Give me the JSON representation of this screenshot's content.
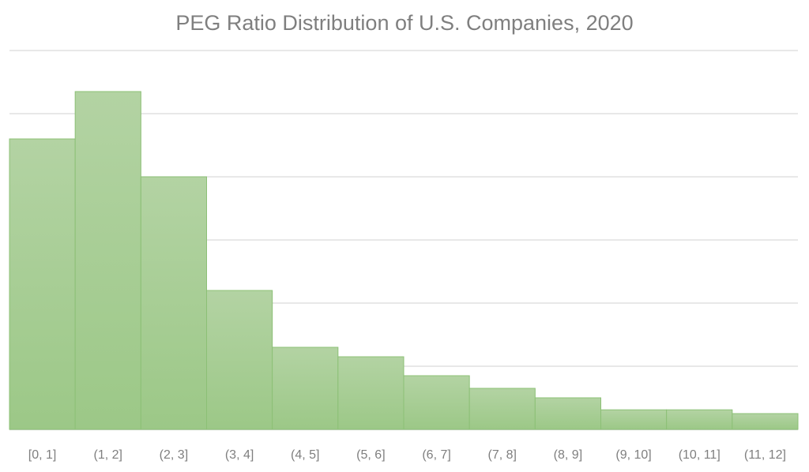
{
  "chart_data": {
    "type": "bar",
    "title": "PEG Ratio Distribution of U.S. Companies, 2020",
    "xlabel": "",
    "ylabel": "",
    "categories": [
      "[0, 1]",
      "(1, 2]",
      "(2, 3]",
      "(3, 4]",
      "(4, 5]",
      "(5, 6]",
      "(6, 7]",
      "(7, 8]",
      "(8, 9]",
      "(9, 10]",
      "(10, 11]",
      "(11, 12]"
    ],
    "values": [
      460,
      535,
      400,
      220,
      130,
      115,
      85,
      65,
      50,
      31,
      31,
      25
    ],
    "value_note": "relative heights; y-axis has no tick labels (each gridline = 100 units)",
    "ylim": [
      0,
      600
    ],
    "gridlines": [
      100,
      200,
      300,
      400,
      500,
      600
    ],
    "grid": true,
    "legend": "none",
    "bar_gap": 0,
    "colors": {
      "bar_top": "#b3d3a3",
      "bar_bottom": "#9cc887",
      "bar_edge": "#8cc076",
      "grid": "#d9d9d9",
      "text": "#7f7f7f"
    }
  }
}
